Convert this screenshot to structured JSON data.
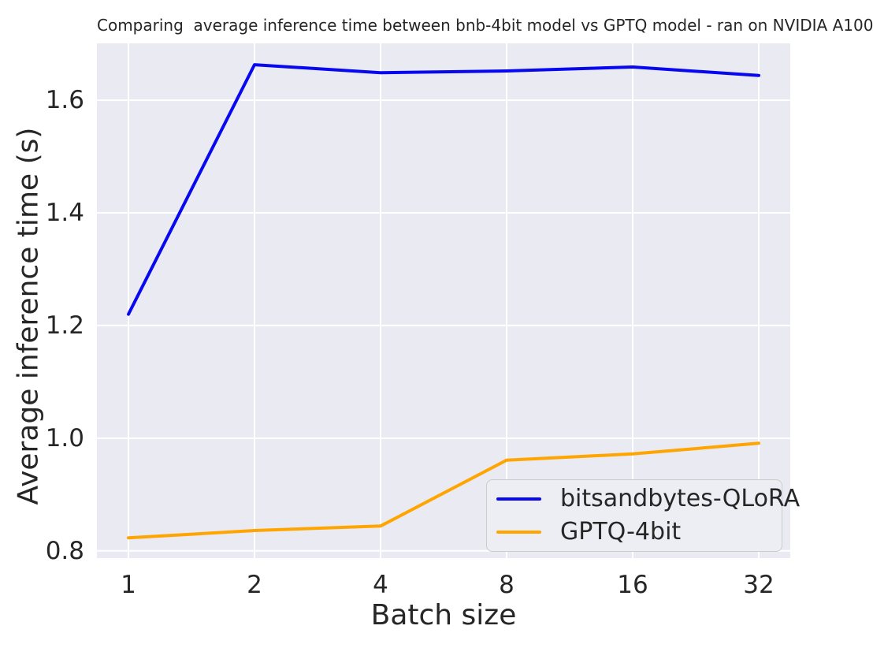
{
  "chart_data": {
    "type": "line",
    "title": "Comparing  average inference time between bnb-4bit model vs GPTQ model - ran on NVIDIA A100",
    "xlabel": "Batch size",
    "ylabel": "Average inference time (s)",
    "x_scale": "log2",
    "categories": [
      1,
      2,
      4,
      8,
      16,
      32
    ],
    "xtick_labels": [
      "1",
      "2",
      "4",
      "8",
      "16",
      "32"
    ],
    "yticks": [
      0.8,
      1.0,
      1.2,
      1.4,
      1.6
    ],
    "ytick_labels": [
      "0.8",
      "1.0",
      "1.2",
      "1.4",
      "1.6"
    ],
    "ylim": [
      0.787,
      1.701
    ],
    "x_margin_log2": 0.25,
    "series": [
      {
        "name": "bitsandbytes-QLoRA",
        "color": "#0808f0",
        "values": [
          1.22,
          1.663,
          1.649,
          1.652,
          1.659,
          1.644
        ]
      },
      {
        "name": "GPTQ-4bit",
        "color": "#ffa502",
        "values": [
          0.823,
          0.836,
          0.844,
          0.961,
          0.972,
          0.991
        ]
      }
    ],
    "grid": true,
    "legend_position": "lower right",
    "colors": {
      "plot_background": "#eaeaf2",
      "figure_background": "#ffffff",
      "gridline": "#ffffff",
      "text": "#262626",
      "legend_background": "#ededf4",
      "legend_border": "#cccccc"
    }
  }
}
